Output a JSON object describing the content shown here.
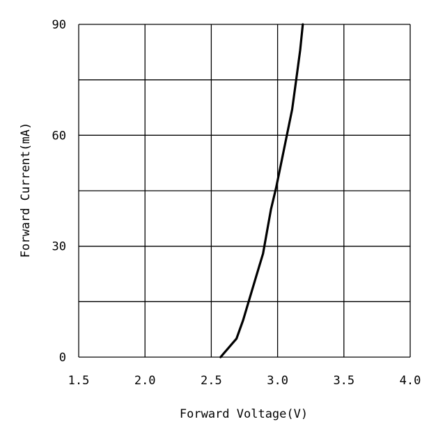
{
  "chart_data": {
    "type": "line",
    "title": "",
    "xlabel": "Forward Voltage(V)",
    "ylabel": "Forward Current(mA)",
    "xlim": [
      1.5,
      4.0
    ],
    "ylim": [
      0,
      90
    ],
    "x_ticks": [
      1.5,
      2.0,
      2.5,
      3.0,
      3.5,
      4.0
    ],
    "x_tick_labels": [
      "1.5",
      "2.0",
      "2.5",
      "3.0",
      "3.5",
      "4.0"
    ],
    "y_ticks": [
      0,
      30,
      60,
      90
    ],
    "y_tick_labels": [
      "0",
      "30",
      "60",
      "90"
    ],
    "y_gridlines": [
      0,
      15,
      30,
      45,
      60,
      75,
      90
    ],
    "grid": true,
    "series": [
      {
        "x": [
          2.57,
          2.69,
          2.74,
          2.79,
          2.84,
          2.89,
          2.92,
          2.95,
          2.99,
          3.03,
          3.07,
          3.11,
          3.14,
          3.17,
          3.19
        ],
        "y": [
          0,
          5,
          10,
          16,
          22,
          28,
          34,
          40,
          46,
          53,
          60,
          67,
          75,
          83,
          90
        ],
        "color": "#000000"
      }
    ]
  }
}
